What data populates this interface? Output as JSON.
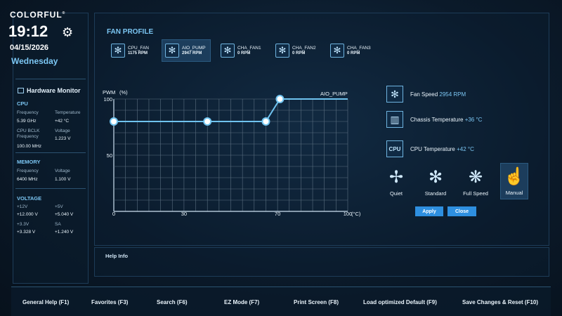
{
  "sidebar": {
    "brand": "COLORFUL",
    "brand_mark": "®",
    "time": "19:12",
    "date": "04/15/2026",
    "day": "Wednesday",
    "hw_title": "Hardware Monitor",
    "cpu": {
      "title": "CPU",
      "frequency_label": "Frequency",
      "frequency": "5.39 GHz",
      "temperature_label": "Temperature",
      "temperature": "+42 °C",
      "bclk_label": "CPU BCLK Frequency",
      "bclk": "100.00 MHz",
      "voltage_label": "Voltage",
      "voltage": "1.223 V"
    },
    "memory": {
      "title": "MEMORY",
      "frequency_label": "Frequency",
      "frequency": "6400 MHz",
      "voltage_label": "Voltage",
      "voltage": "1.100 V"
    },
    "voltage": {
      "title": "VOLTAGE",
      "v12_label": "+12V",
      "v12": "+12.000 V",
      "v5_label": "+5V",
      "v5": "+5.040 V",
      "v33_label": "+3.3V",
      "v33": "+3.328 V",
      "sa_label": "SA",
      "sa": "+1.240 V"
    }
  },
  "fan_profile": {
    "title": "FAN PROFILE",
    "fans": [
      {
        "name": "CPU_FAN",
        "rpm": "1175 RPM"
      },
      {
        "name": "AIO_PUMP",
        "rpm": "2947 RPM"
      },
      {
        "name": "CHA_FAN1",
        "rpm": "0 RPM"
      },
      {
        "name": "CHA_FAN2",
        "rpm": "0 RPM"
      },
      {
        "name": "CHA_FAN3",
        "rpm": "0 RPM"
      }
    ],
    "active_fan": "AIO_PUMP"
  },
  "chart_data": {
    "type": "line",
    "title": "AIO_PUMP",
    "ylabel": "PWM",
    "yunit": "(%)",
    "xunit": "(°C)",
    "x_ticks": [
      "0",
      "30",
      "70",
      "100"
    ],
    "y_ticks": [
      "50",
      "100"
    ],
    "xlim": [
      0,
      100
    ],
    "ylim": [
      0,
      100
    ],
    "grid": true,
    "series": [
      {
        "x": [
          0,
          40,
          65,
          71,
          100
        ],
        "y": [
          80,
          80,
          80,
          100,
          100
        ]
      }
    ]
  },
  "status": {
    "fan_speed_label": "Fan Speed",
    "fan_speed": "2954 RPM",
    "chassis_label": "Chassis Temperature",
    "chassis": "+36 °C",
    "cpu_label": "CPU Temperature",
    "cpu": "+42 °C",
    "cpu_icon_text": "CPU"
  },
  "modes": [
    {
      "label": "Quiet",
      "icon": "fan-slow-icon"
    },
    {
      "label": "Standard",
      "icon": "fan-standard-icon"
    },
    {
      "label": "Full Speed",
      "icon": "fan-full-icon"
    },
    {
      "label": "Manual",
      "icon": "hand-pointer-icon"
    }
  ],
  "active_mode": "Manual",
  "buttons": {
    "apply": "Apply",
    "close": "Close"
  },
  "help": {
    "title": "Help Info"
  },
  "footer": [
    "General Help (F1)",
    "Favorites (F3)",
    "Search (F6)",
    "EZ Mode (F7)",
    "Print Screen (F8)",
    "Load optimized Default (F9)",
    "Save Changes & Reset (F10)"
  ],
  "colors": {
    "accent": "#7cc7f4",
    "button": "#2e8fe0",
    "curve": "#6fc3ef"
  }
}
